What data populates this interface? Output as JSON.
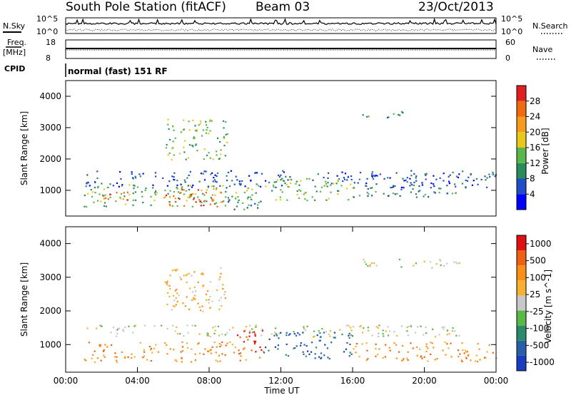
{
  "header": {
    "station": "South Pole Station (fitACF)",
    "beam": "Beam 03",
    "date": "23/Oct/2013"
  },
  "top_panels": {
    "nsky_label": "N.Sky",
    "nsky_ticks": [
      "10^5",
      "10^0"
    ],
    "nsearch_label": "N.Search",
    "nsearch_ticks": [
      "10^5",
      "10^0"
    ],
    "freq_label": "Freq.",
    "freq_unit": "[MHz]",
    "freq_ticks": [
      "18",
      "8"
    ],
    "nave_label": "Nave",
    "nave_ticks": [
      "60",
      "0"
    ],
    "cpid_label": "CPID",
    "cpid_text": "normal (fast) 151 RF"
  },
  "chart_data": [
    {
      "type": "heatmap",
      "name": "power",
      "ylabel": "Slant Range [km]",
      "y_ticks": [
        "1000",
        "2000",
        "3000",
        "4000"
      ],
      "ylim": [
        180,
        4500
      ],
      "colorbar_label": "Power [dB]",
      "colorbar_ticks": [
        "4",
        "8",
        "12",
        "16",
        "20",
        "24",
        "28"
      ],
      "colorbar_colors": [
        "#0000ff",
        "#1f4fc8",
        "#2a8c5a",
        "#5ab84a",
        "#e8c81a",
        "#f89a1c",
        "#f06a12",
        "#e02020"
      ],
      "scatter_regions": [
        {
          "x": [
            1.0,
            24.0
          ],
          "y": [
            1100,
            1650
          ],
          "level": 1
        },
        {
          "x": [
            1.0,
            11.0
          ],
          "y": [
            500,
            1200
          ],
          "level": 3
        },
        {
          "x": [
            2.0,
            3.5
          ],
          "y": [
            600,
            1000
          ],
          "level": 6
        },
        {
          "x": [
            5.5,
            8.8
          ],
          "y": [
            500,
            1100
          ],
          "level": 6
        },
        {
          "x": [
            9.0,
            11.0
          ],
          "y": [
            400,
            800
          ],
          "level": 2
        },
        {
          "x": [
            11.0,
            16.0
          ],
          "y": [
            700,
            1400
          ],
          "level": 3
        },
        {
          "x": [
            16.0,
            22.0
          ],
          "y": [
            800,
            1200
          ],
          "level": 2
        },
        {
          "x": [
            5.5,
            9.0
          ],
          "y": [
            2000,
            3300
          ],
          "level": 3
        },
        {
          "x": [
            16.5,
            19.0
          ],
          "y": [
            3300,
            3550
          ],
          "level": 2
        }
      ]
    },
    {
      "type": "heatmap",
      "name": "velocity",
      "ylabel": "Slant Range [km]",
      "y_ticks": [
        "1000",
        "2000",
        "3000",
        "4000"
      ],
      "ylim": [
        180,
        4500
      ],
      "xlabel": "Time UT",
      "x_ticks": [
        "00:00",
        "04:00",
        "08:00",
        "12:00",
        "16:00",
        "20:00",
        "00:00"
      ],
      "colorbar_label": "Velocity [m s^-1]",
      "colorbar_ticks": [
        "1000",
        "500",
        "100",
        "25",
        "-25",
        "-100",
        "-500",
        "-1000"
      ],
      "colorbar_colors": [
        "#1a3cc0",
        "#2860a8",
        "#2a8a6a",
        "#58b848",
        "#c8c8c8",
        "#f8b030",
        "#f89018",
        "#f06010",
        "#e01010"
      ],
      "scatter_regions": [
        {
          "x": [
            1.0,
            11.0
          ],
          "y": [
            500,
            1100
          ],
          "level": 6
        },
        {
          "x": [
            1.0,
            22.0
          ],
          "y": [
            1250,
            1600
          ],
          "level": 4
        },
        {
          "x": [
            9.5,
            11.0
          ],
          "y": [
            800,
            1500
          ],
          "level": 8
        },
        {
          "x": [
            11.0,
            16.0
          ],
          "y": [
            600,
            1400
          ],
          "level": 1
        },
        {
          "x": [
            16.0,
            24.0
          ],
          "y": [
            500,
            1100
          ],
          "level": 6
        },
        {
          "x": [
            5.5,
            9.0
          ],
          "y": [
            2000,
            3300
          ],
          "level": 5
        },
        {
          "x": [
            16.0,
            22.0
          ],
          "y": [
            3300,
            3550
          ],
          "level": 4
        }
      ]
    }
  ]
}
